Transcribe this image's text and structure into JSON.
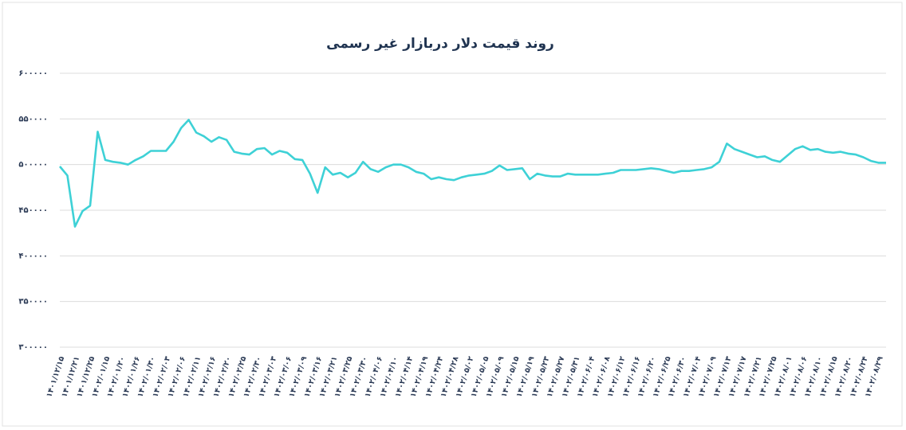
{
  "chart_data": {
    "type": "line",
    "title": "روند قیمت دلار دربازار غیر رسمی",
    "color": "#3ed1d6",
    "grid": true,
    "ylim": [
      300000,
      600000
    ],
    "yticks": [
      {
        "value": 300000,
        "label": "۳۰۰۰۰۰"
      },
      {
        "value": 350000,
        "label": "۳۵۰۰۰۰"
      },
      {
        "value": 400000,
        "label": "۴۰۰۰۰۰"
      },
      {
        "value": 450000,
        "label": "۴۵۰۰۰۰"
      },
      {
        "value": 500000,
        "label": "۵۰۰۰۰۰"
      },
      {
        "value": 550000,
        "label": "۵۵۰۰۰۰"
      },
      {
        "value": 600000,
        "label": "۶۰۰۰۰۰"
      }
    ],
    "categories": [
      "۱۴۰۱/۱۲/۱۵",
      null,
      "۱۴۰۱/۱۲/۲۱",
      null,
      "۱۴۰۱/۱۲/۲۵",
      null,
      "۱۴۰۲/۰۱/۱۵",
      null,
      "۱۴۰۲/۰۱/۲۰",
      null,
      "۱۴۰۲/۰۱/۲۶",
      null,
      "۱۴۰۲/۰۱/۳۰",
      null,
      "۱۴۰۲/۰۲/۰۳",
      null,
      "۱۴۰۲/۰۲/۰۶",
      null,
      "۱۴۰۲/۰۲/۱۱",
      null,
      "۱۴۰۲/۰۲/۱۶",
      null,
      "۱۴۰۲/۰۲/۲۰",
      null,
      "۱۴۰۲/۰۲/۲۵",
      null,
      "۱۴۰۲/۰۲/۳۰",
      null,
      "۱۴۰۲/۰۳/۰۳",
      null,
      "۱۴۰۲/۰۳/۰۶",
      null,
      "۱۴۰۲/۰۳/۰۹",
      null,
      "۱۴۰۲/۰۳/۱۶",
      null,
      "۱۴۰۲/۰۳/۲۱",
      null,
      "۱۴۰۲/۰۳/۲۵",
      null,
      "۱۴۰۲/۰۳/۳۰",
      null,
      "۱۴۰۲/۰۴/۰۶",
      null,
      "۱۴۰۲/۰۴/۱۰",
      null,
      "۱۴۰۲/۰۴/۱۴",
      null,
      "۱۴۰۲/۰۴/۱۹",
      null,
      "۱۴۰۲/۰۴/۲۴",
      null,
      "۱۴۰۲/۰۴/۲۸",
      null,
      "۱۴۰۲/۰۵/۰۲",
      null,
      "۱۴۰۲/۰۵/۰۵",
      null,
      "۱۴۰۲/۰۵/۰۹",
      null,
      "۱۴۰۲/۰۵/۱۵",
      null,
      "۱۴۰۲/۰۵/۱۹",
      null,
      "۱۴۰۲/۰۵/۲۳",
      null,
      "۱۴۰۲/۰۵/۲۷",
      null,
      "۱۴۰۲/۰۵/۳۱",
      null,
      "۱۴۰۲/۰۶/۰۴",
      null,
      "۱۴۰۲/۰۶/۰۸",
      null,
      "۱۴۰۲/۰۶/۱۲",
      null,
      "۱۴۰۲/۰۶/۱۶",
      null,
      "۱۴۰۲/۰۶/۲۰",
      null,
      "۱۴۰۲/۰۶/۲۵",
      null,
      "۱۴۰۲/۰۶/۳۰",
      null,
      "۱۴۰۲/۰۷/۰۴",
      null,
      "۱۴۰۲/۰۷/۰۹",
      null,
      "۱۴۰۲/۰۷/۱۳",
      null,
      "۱۴۰۲/۰۷/۱۷",
      null,
      "۱۴۰۲/۰۷/۲۱",
      null,
      "۱۴۰۲/۰۷/۲۵",
      null,
      "۱۴۰۲/۰۸/۰۱",
      null,
      "۱۴۰۲/۰۸/۰۶",
      null,
      "۱۴۰۲/۰۸/۱۰",
      null,
      "۱۴۰۲/۰۸/۱۵",
      null,
      "۱۴۰۲/۰۸/۲۰",
      null,
      "۱۴۰۲/۰۸/۲۴",
      null,
      "۱۴۰۲/۰۸/۲۹",
      null
    ],
    "values": [
      498000,
      488000,
      432000,
      449000,
      455000,
      536000,
      505000,
      503000,
      502000,
      500000,
      505000,
      509000,
      515000,
      515000,
      515000,
      525000,
      540000,
      549000,
      535000,
      531000,
      525000,
      530000,
      527000,
      514000,
      512000,
      511000,
      517000,
      518000,
      511000,
      515000,
      513000,
      506000,
      505000,
      490000,
      469000,
      497000,
      489000,
      491000,
      486000,
      491000,
      503000,
      495000,
      492000,
      497000,
      500000,
      500000,
      497000,
      492000,
      490000,
      484000,
      486000,
      484000,
      483000,
      486000,
      488000,
      489000,
      490000,
      493000,
      499000,
      494000,
      495000,
      496000,
      484000,
      490000,
      488000,
      487000,
      487000,
      490000,
      489000,
      489000,
      489000,
      489000,
      490000,
      491000,
      494000,
      494000,
      494000,
      495000,
      496000,
      495000,
      493000,
      491000,
      493000,
      493000,
      494000,
      495000,
      497000,
      503000,
      523000,
      517000,
      514000,
      511000,
      508000,
      509000,
      505000,
      503000,
      510000,
      517000,
      520000,
      516000,
      517000,
      514000,
      513000,
      514000,
      512000,
      511000,
      508000,
      504000,
      502000,
      502000
    ]
  }
}
